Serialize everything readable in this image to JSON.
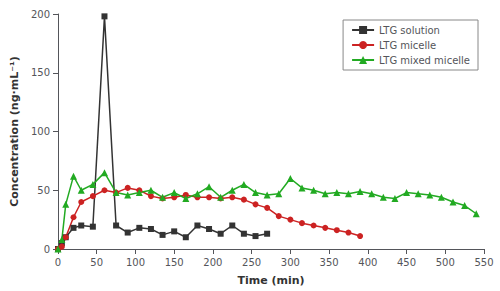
{
  "chart_data": {
    "type": "line",
    "xlabel": "Time (min)",
    "ylabel": "Concentration (ng·mL⁻¹)",
    "xlim": [
      0,
      550
    ],
    "xticks": [
      0,
      50,
      100,
      150,
      200,
      250,
      300,
      350,
      400,
      450,
      500,
      550
    ],
    "ylim": [
      0,
      200
    ],
    "yticks": [
      0,
      50,
      100,
      150,
      200
    ],
    "grid": false,
    "legend": "upper right",
    "series": [
      {
        "name": "LTG solution",
        "color": "#333333",
        "marker": "square",
        "x": [
          0,
          5,
          10,
          20,
          30,
          45,
          60,
          75,
          90,
          105,
          120,
          135,
          150,
          165,
          180,
          195,
          210,
          225,
          240,
          255,
          270
        ],
        "values": [
          0,
          5,
          10,
          18,
          20,
          19,
          198,
          20,
          14,
          18,
          17,
          12,
          15,
          10,
          20,
          17,
          13,
          20,
          13,
          11,
          13
        ]
      },
      {
        "name": "LTG micelle",
        "color": "#cc2222",
        "marker": "circle",
        "x": [
          0,
          5,
          10,
          20,
          30,
          45,
          60,
          75,
          90,
          105,
          120,
          135,
          150,
          165,
          180,
          195,
          210,
          225,
          240,
          255,
          270,
          285,
          300,
          315,
          330,
          345,
          360,
          375,
          390
        ],
        "values": [
          0,
          2,
          10,
          27,
          40,
          45,
          50,
          48,
          52,
          50,
          45,
          43,
          44,
          46,
          44,
          44,
          43,
          44,
          42,
          38,
          35,
          28,
          25,
          22,
          20,
          18,
          16,
          14,
          11
        ]
      },
      {
        "name": "LTG mixed micelle",
        "color": "#22aa22",
        "marker": "triangle",
        "x": [
          0,
          5,
          10,
          20,
          30,
          45,
          60,
          75,
          90,
          105,
          120,
          135,
          150,
          165,
          180,
          195,
          210,
          225,
          240,
          255,
          270,
          285,
          300,
          315,
          330,
          345,
          360,
          375,
          390,
          405,
          420,
          435,
          450,
          465,
          480,
          495,
          510,
          525,
          540
        ],
        "values": [
          0,
          8,
          38,
          62,
          50,
          55,
          65,
          48,
          46,
          48,
          50,
          44,
          48,
          43,
          47,
          53,
          44,
          50,
          55,
          48,
          46,
          47,
          60,
          52,
          50,
          47,
          48,
          47,
          49,
          47,
          44,
          43,
          48,
          47,
          46,
          44,
          40,
          37,
          30
        ]
      }
    ]
  }
}
